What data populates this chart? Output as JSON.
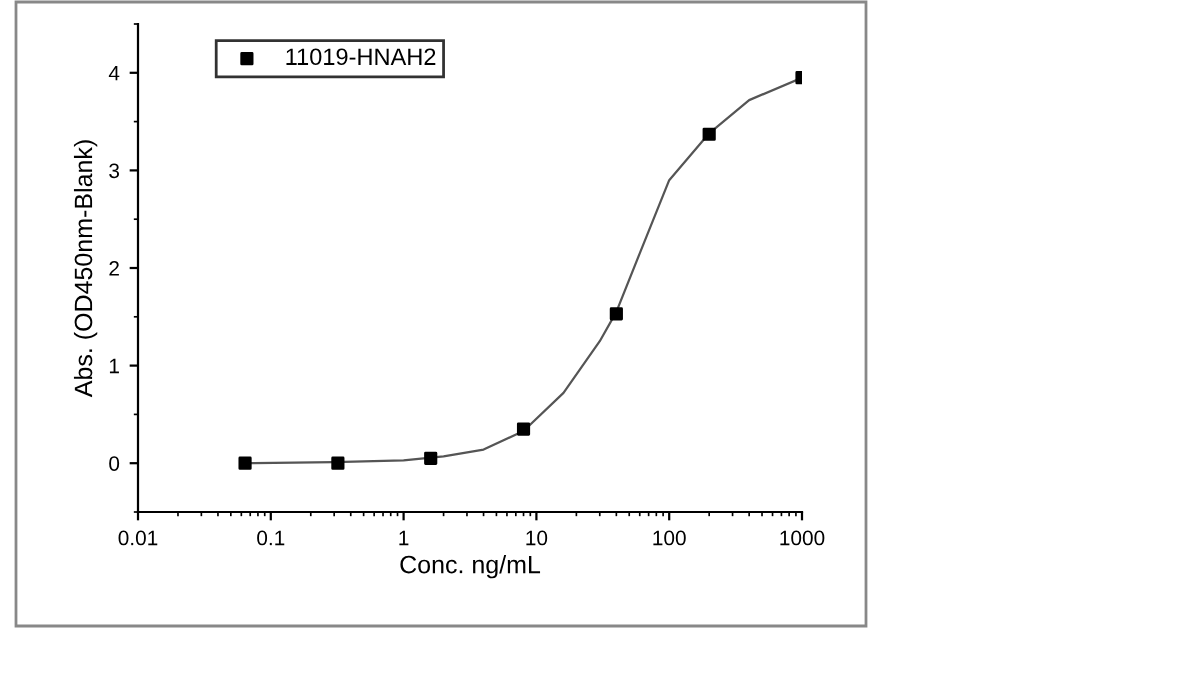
{
  "chart_data": {
    "type": "scatter",
    "xlabel": "Conc. ng/mL",
    "ylabel": "Abs. (OD450nm-Blank)",
    "log": "x",
    "grid": false,
    "legend": "top left",
    "xlim": [
      0.01,
      1000
    ],
    "xticks": [
      0.01,
      0.1,
      1,
      10,
      100,
      1000
    ],
    "ylim": [
      -0.5,
      4.5
    ],
    "yticks": [
      0,
      1,
      2,
      3,
      4
    ],
    "series": [
      {
        "name": "11019-HNAH2",
        "marker": "square",
        "color": "#000000",
        "x": [
          0.064,
          0.32,
          1.6,
          8,
          40,
          200,
          1000
        ],
        "values": [
          0,
          0,
          0.05,
          0.35,
          1.53,
          3.37,
          3.95
        ]
      },
      {
        "type": "line",
        "marker": "none",
        "color": "#555555",
        "line_style": "solid",
        "x": [
          0.064,
          0.3,
          1,
          2,
          4,
          8,
          16,
          30,
          40,
          60,
          100,
          200,
          400,
          1000
        ],
        "values": [
          0,
          0.01,
          0.03,
          0.07,
          0.14,
          0.33,
          0.72,
          1.25,
          1.55,
          2.15,
          2.9,
          3.38,
          3.72,
          3.95
        ]
      }
    ]
  }
}
